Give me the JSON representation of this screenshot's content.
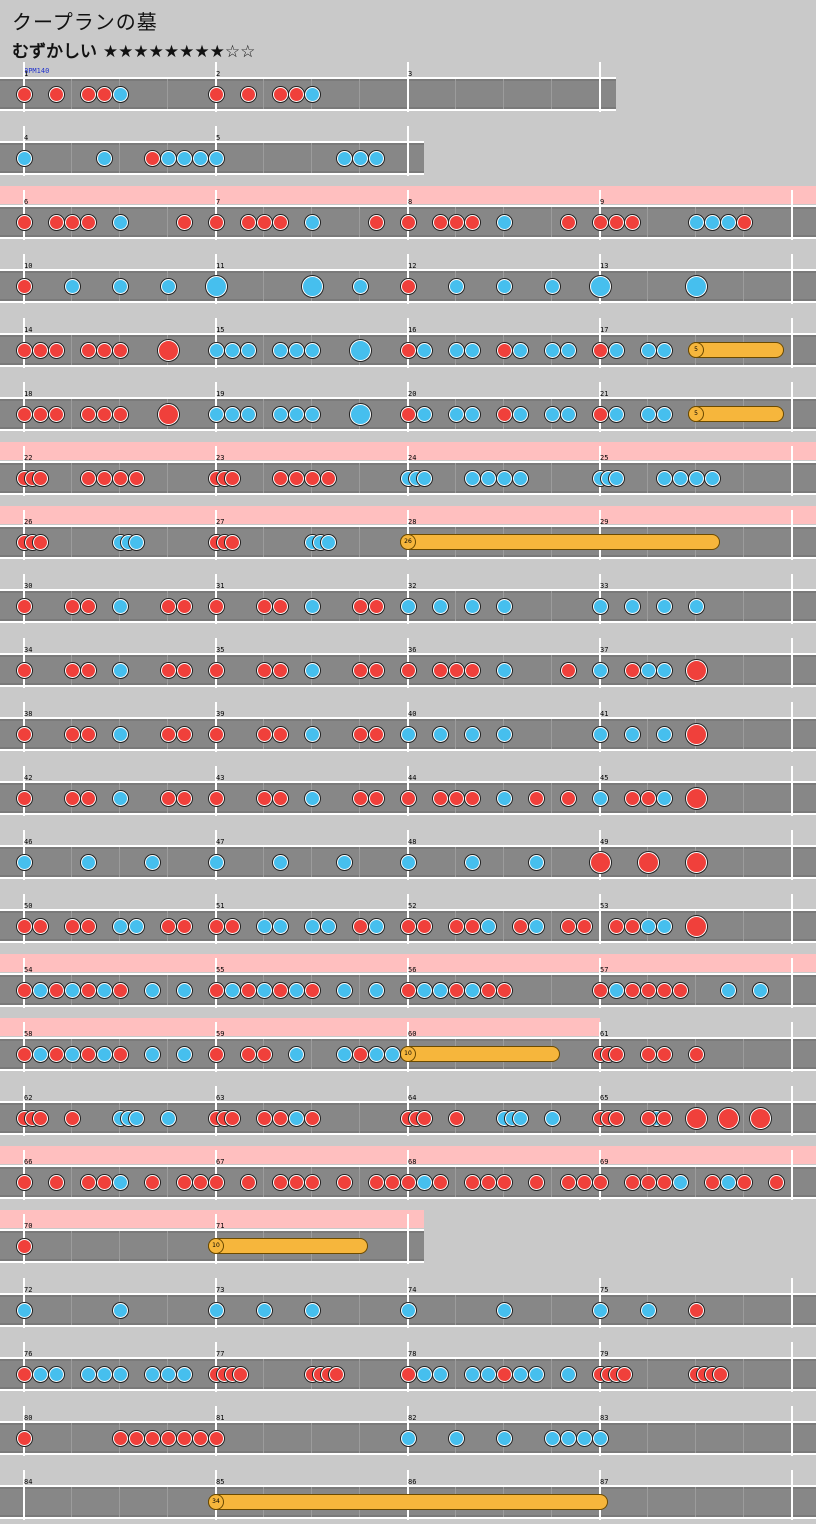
{
  "title": "クープランの墓",
  "difficulty": "むずかしい ★★★★★★★★☆☆",
  "bpm_label": "BPM140",
  "rows": [
    {
      "measures": [
        1,
        2,
        3
      ],
      "gogo": [],
      "don": [
        1,
        3,
        5,
        6,
        13,
        15,
        17,
        18
      ],
      "ka": [
        7,
        19
      ],
      "rolls": []
    },
    {
      "measures": [
        4,
        5
      ],
      "gogo": [],
      "don": [
        9
      ],
      "ka": [
        1,
        6,
        10,
        11,
        12,
        13,
        21,
        22,
        23
      ],
      "rolls": []
    },
    {
      "measures": [
        6,
        7,
        8,
        9
      ],
      "gogo": [
        [
          0,
          4
        ]
      ],
      "don": [
        1,
        3,
        4,
        5,
        11,
        13,
        15,
        16,
        17,
        23,
        25,
        27,
        28,
        29,
        35,
        37,
        38,
        39,
        46
      ],
      "ka": [
        7,
        19,
        31,
        43,
        44,
        45
      ],
      "rolls": []
    },
    {
      "measures": [
        10,
        11,
        12,
        13
      ],
      "gogo": [],
      "don": [
        1,
        25
      ],
      "ka": [
        4,
        7,
        10,
        22,
        28,
        31,
        34
      ],
      "bigka": [
        13,
        19,
        37,
        43
      ],
      "rolls": []
    },
    {
      "measures": [
        14,
        15,
        16,
        17
      ],
      "gogo": [],
      "don": [
        1,
        2,
        3,
        5,
        6,
        7,
        25,
        31,
        37
      ],
      "bigdon": [
        10
      ],
      "ka": [
        13,
        14,
        15,
        17,
        18,
        19,
        26,
        28,
        29,
        32,
        34,
        35,
        38,
        40,
        41
      ],
      "bigka": [
        22
      ],
      "rolls": [
        [
          43,
          48,
          "5"
        ]
      ]
    },
    {
      "measures": [
        18,
        19,
        20,
        21
      ],
      "gogo": [],
      "don": [
        1,
        2,
        3,
        5,
        6,
        7,
        25,
        31,
        37
      ],
      "bigdon": [
        10
      ],
      "ka": [
        13,
        14,
        15,
        17,
        18,
        19,
        26,
        28,
        29,
        32,
        34,
        35,
        38,
        40,
        41
      ],
      "bigka": [
        22
      ],
      "rolls": [
        [
          43,
          48,
          "5"
        ]
      ]
    },
    {
      "measures": [
        22,
        23,
        24,
        25
      ],
      "gogo": [
        [
          0,
          4
        ]
      ],
      "don": [
        1,
        1.5,
        2,
        5,
        6,
        7,
        8,
        13,
        13.5,
        14,
        17,
        18,
        19,
        20
      ],
      "ka": [
        25,
        25.5,
        26,
        29,
        30,
        31,
        32,
        37,
        37.5,
        38,
        41,
        42,
        43,
        44
      ],
      "rolls": []
    },
    {
      "measures": [
        26,
        27,
        28,
        29
      ],
      "gogo": [
        [
          0,
          4
        ]
      ],
      "don": [
        1,
        1.5,
        2,
        13,
        13.5,
        14
      ],
      "ka": [
        7,
        7.5,
        8,
        19,
        19.5,
        20
      ],
      "rolls": [
        [
          25,
          44,
          "26"
        ]
      ]
    },
    {
      "measures": [
        30,
        31,
        32,
        33
      ],
      "gogo": [],
      "don": [
        1,
        4,
        5,
        10,
        11,
        13,
        16,
        17,
        22,
        23
      ],
      "ka": [
        7,
        19,
        25,
        27,
        29,
        31,
        37,
        39,
        41,
        43
      ],
      "rolls": []
    },
    {
      "measures": [
        34,
        35,
        36,
        37
      ],
      "gogo": [],
      "don": [
        1,
        4,
        5,
        10,
        11,
        13,
        16,
        17,
        22,
        23,
        25,
        27,
        28,
        29,
        35,
        39
      ],
      "ka": [
        7,
        19,
        31,
        37,
        40,
        41
      ],
      "bigdon": [
        43
      ],
      "rolls": []
    },
    {
      "measures": [
        38,
        39,
        40,
        41
      ],
      "gogo": [],
      "don": [
        1,
        4,
        5,
        10,
        11,
        13,
        16,
        17,
        22,
        23
      ],
      "ka": [
        7,
        19,
        25,
        27,
        29,
        31,
        37,
        39,
        41
      ],
      "bigdon": [
        43
      ],
      "rolls": []
    },
    {
      "measures": [
        42,
        43,
        44,
        45
      ],
      "gogo": [],
      "don": [
        1,
        4,
        5,
        10,
        11,
        13,
        16,
        17,
        22,
        23,
        25,
        27,
        28,
        29,
        33,
        35,
        39,
        40
      ],
      "ka": [
        7,
        19,
        31,
        37,
        41
      ],
      "bigdon": [
        43
      ],
      "rolls": []
    },
    {
      "measures": [
        46,
        47,
        48,
        49
      ],
      "gogo": [],
      "don": [],
      "ka": [
        1,
        5,
        9,
        13,
        17,
        21,
        25,
        29,
        33
      ],
      "bigdon": [
        37,
        40,
        43
      ],
      "rolls": []
    },
    {
      "measures": [
        50,
        51,
        52,
        53
      ],
      "gogo": [],
      "don": [
        1,
        2,
        4,
        5,
        10,
        11,
        13,
        14,
        22,
        25,
        26,
        28,
        29,
        32,
        35,
        36,
        38,
        39
      ],
      "ka": [
        7,
        8,
        16,
        17,
        19,
        20,
        23,
        30,
        33,
        40,
        41
      ],
      "bigdon": [
        43
      ],
      "rolls": []
    },
    {
      "measures": [
        54,
        55,
        56,
        57
      ],
      "gogo": [
        [
          0,
          4
        ]
      ],
      "don": [
        1,
        3,
        5,
        7,
        13,
        15,
        17,
        19,
        25,
        28,
        30,
        31,
        37,
        39,
        40,
        41,
        42
      ],
      "ka": [
        2,
        4,
        6,
        9,
        11,
        14,
        16,
        18,
        21,
        23,
        26,
        27,
        29,
        38,
        45,
        47
      ],
      "rolls": []
    },
    {
      "measures": [
        58,
        59,
        60,
        61
      ],
      "gogo": [
        [
          0,
          3
        ]
      ],
      "don": [
        1,
        3,
        5,
        7,
        13,
        15,
        16,
        22,
        37,
        37.5,
        38,
        40,
        41,
        43
      ],
      "ka": [
        2,
        4,
        6,
        9,
        11,
        18,
        21,
        23,
        24
      ],
      "rolls": [
        [
          25,
          34,
          "10"
        ]
      ]
    },
    {
      "measures": [
        62,
        63,
        64,
        65
      ],
      "gogo": [],
      "don": [
        1,
        1.5,
        2,
        4,
        13,
        13.5,
        14,
        16,
        17,
        19,
        25,
        25.5,
        26,
        28,
        37,
        37.5,
        38,
        40,
        41
      ],
      "ka": [
        7,
        7.5,
        8,
        10,
        18,
        31,
        31.5,
        32,
        34,
        40.5
      ],
      "bigdon": [
        43,
        45,
        47
      ],
      "rolls": []
    },
    {
      "measures": [
        66,
        67,
        68,
        69
      ],
      "gogo": [
        [
          0,
          4
        ]
      ],
      "don": [
        1,
        3,
        5,
        6,
        9,
        11,
        12,
        13,
        15,
        17,
        18,
        19,
        21,
        23,
        24,
        25,
        27,
        29,
        30,
        31,
        33,
        35,
        36,
        37,
        39,
        40,
        41,
        44,
        46,
        48
      ],
      "ka": [
        7,
        26,
        42,
        45
      ],
      "rolls": []
    },
    {
      "measures": [
        70,
        71
      ],
      "gogo": [
        [
          0,
          2
        ]
      ],
      "don": [
        1
      ],
      "ka": [],
      "rolls": [
        [
          13,
          22,
          "10"
        ]
      ]
    },
    {
      "measures": [
        72,
        73,
        74,
        75
      ],
      "gogo": [],
      "don": [
        43
      ],
      "ka": [
        1,
        7,
        13,
        16,
        19,
        25,
        31,
        37,
        40
      ],
      "rolls": []
    },
    {
      "measures": [
        76,
        77,
        78,
        79
      ],
      "gogo": [],
      "don": [
        1,
        13,
        13.5,
        14,
        14.5,
        19,
        19.5,
        20,
        20.5,
        25,
        31,
        37,
        37.5,
        38,
        38.5,
        43,
        43.5,
        44,
        44.5
      ],
      "ka": [
        2,
        3,
        5,
        6,
        7,
        9,
        10,
        11,
        26,
        27,
        29,
        30,
        32,
        33,
        35
      ],
      "rolls": []
    },
    {
      "measures": [
        80,
        81,
        82,
        83
      ],
      "gogo": [],
      "don": [
        1,
        7,
        8,
        9,
        10,
        11,
        12,
        13
      ],
      "ka": [
        25,
        28,
        31,
        34,
        35,
        36,
        37
      ],
      "rolls": []
    },
    {
      "measures": [
        84,
        85,
        86,
        87
      ],
      "gogo": [],
      "don": [],
      "ka": [],
      "rolls": [
        [
          13,
          37,
          "34"
        ]
      ]
    }
  ]
}
